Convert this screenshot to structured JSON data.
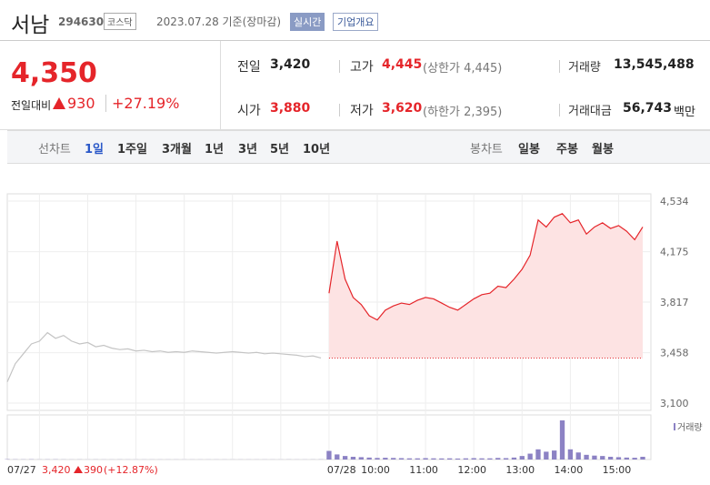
{
  "header": {
    "name": "서남",
    "code": "294630",
    "market": "코스닥",
    "date": "2023.07.28 기준(장마감)",
    "realtime": "실시간",
    "overview": "기업개요"
  },
  "quote": {
    "price": "4,350",
    "change_label": "전일대비",
    "change": "930",
    "rate": "+27.19%"
  },
  "stats": [
    {
      "label": "전일",
      "value": "3,420"
    },
    {
      "label": "고가",
      "value": "4,445",
      "note": "(상한가 4,445)"
    },
    {
      "label": "거래량",
      "value": "13,545,488"
    },
    {
      "label": "시가",
      "value": "3,880"
    },
    {
      "label": "저가",
      "value": "3,620",
      "note": "(하한가 2,395)"
    },
    {
      "label": "거래대금",
      "value": "56,743",
      "note": "백만"
    }
  ],
  "tabs": {
    "line_label": "선차트",
    "line_items": [
      "1일",
      "1주일",
      "3개월",
      "1년",
      "3년",
      "5년",
      "10년"
    ],
    "candle_label": "봉차트",
    "candle_items": [
      "일봉",
      "주봉",
      "월봉"
    ]
  },
  "footer": {
    "date": "07/27",
    "close": "3,420",
    "change": "390",
    "rate": "(+12.87%)"
  },
  "chart_data": {
    "type": "line",
    "categories": [
      "07/27",
      null,
      null,
      null,
      null,
      null,
      null,
      null,
      null,
      null,
      null,
      null,
      null,
      null,
      null,
      null,
      null,
      null,
      null,
      null,
      null,
      null,
      null,
      null,
      null,
      null,
      null,
      null,
      null,
      null,
      null,
      null,
      null,
      null,
      null,
      null,
      null,
      null,
      null,
      null,
      "07/28",
      null,
      null,
      null,
      null,
      null,
      "10:00",
      null,
      null,
      null,
      null,
      null,
      "11:00",
      null,
      null,
      null,
      null,
      null,
      "12:00",
      null,
      null,
      null,
      null,
      null,
      "13:00",
      null,
      null,
      null,
      null,
      null,
      "14:00",
      null,
      null,
      null,
      null,
      null,
      "15:00",
      null,
      null,
      null
    ],
    "series": [
      {
        "color": "#c4c4c4",
        "values": [
          3250,
          3380,
          3450,
          3520,
          3540,
          3600,
          3560,
          3580,
          3540,
          3520,
          3530,
          3500,
          3510,
          3490,
          3480,
          3485,
          3470,
          3475,
          3465,
          3470,
          3460,
          3465,
          3460,
          3470,
          3465,
          3460,
          3455,
          3460,
          3465,
          3460,
          3455,
          3460,
          3450,
          3455,
          3450,
          3445,
          3440,
          3430,
          3435,
          3420,
          null,
          null,
          null,
          null,
          null,
          null,
          null,
          null,
          null,
          null,
          null,
          null,
          null,
          null,
          null,
          null,
          null,
          null,
          null,
          null,
          null,
          null,
          null,
          null,
          null,
          null,
          null,
          null,
          null,
          null,
          null,
          null,
          null,
          null,
          null,
          null,
          null,
          null,
          null,
          null
        ]
      },
      {
        "color": "#e5252a",
        "fill": "#fde3e3",
        "values": [
          null,
          null,
          null,
          null,
          null,
          null,
          null,
          null,
          null,
          null,
          null,
          null,
          null,
          null,
          null,
          null,
          null,
          null,
          null,
          null,
          null,
          null,
          null,
          null,
          null,
          null,
          null,
          null,
          null,
          null,
          null,
          null,
          null,
          null,
          null,
          null,
          null,
          null,
          null,
          null,
          3880,
          4250,
          3980,
          3850,
          3800,
          3720,
          3690,
          3760,
          3790,
          3810,
          3800,
          3830,
          3850,
          3840,
          3810,
          3780,
          3760,
          3800,
          3840,
          3870,
          3880,
          3930,
          3920,
          3980,
          4050,
          4150,
          4400,
          4350,
          4420,
          4445,
          4380,
          4400,
          4300,
          4350,
          4380,
          4340,
          4360,
          4320,
          4260,
          4350
        ]
      }
    ],
    "reference": 3420,
    "ylim": [
      3100,
      4534
    ],
    "yticks": [
      {
        "value": 3100,
        "label": "3,100"
      },
      {
        "value": 3458,
        "label": "3,458"
      },
      {
        "value": 3817,
        "label": "3,817"
      },
      {
        "value": 4175,
        "label": "4,175"
      },
      {
        "value": 4534,
        "label": "4,534"
      }
    ],
    "grid": true,
    "volume": {
      "name": "거래량",
      "color": "#8c82c4",
      "values": [
        8,
        5,
        4,
        6,
        3,
        4,
        5,
        3,
        2,
        3,
        2,
        3,
        2,
        2,
        3,
        2,
        2,
        2,
        2,
        2,
        2,
        2,
        2,
        2,
        2,
        2,
        2,
        2,
        2,
        2,
        2,
        2,
        2,
        2,
        2,
        3,
        2,
        2,
        3,
        4,
        220,
        130,
        90,
        70,
        60,
        50,
        40,
        45,
        40,
        35,
        30,
        30,
        35,
        30,
        28,
        30,
        25,
        30,
        35,
        30,
        30,
        40,
        35,
        50,
        90,
        150,
        260,
        200,
        230,
        1000,
        260,
        180,
        120,
        100,
        90,
        70,
        60,
        50,
        45,
        70
      ]
    }
  }
}
